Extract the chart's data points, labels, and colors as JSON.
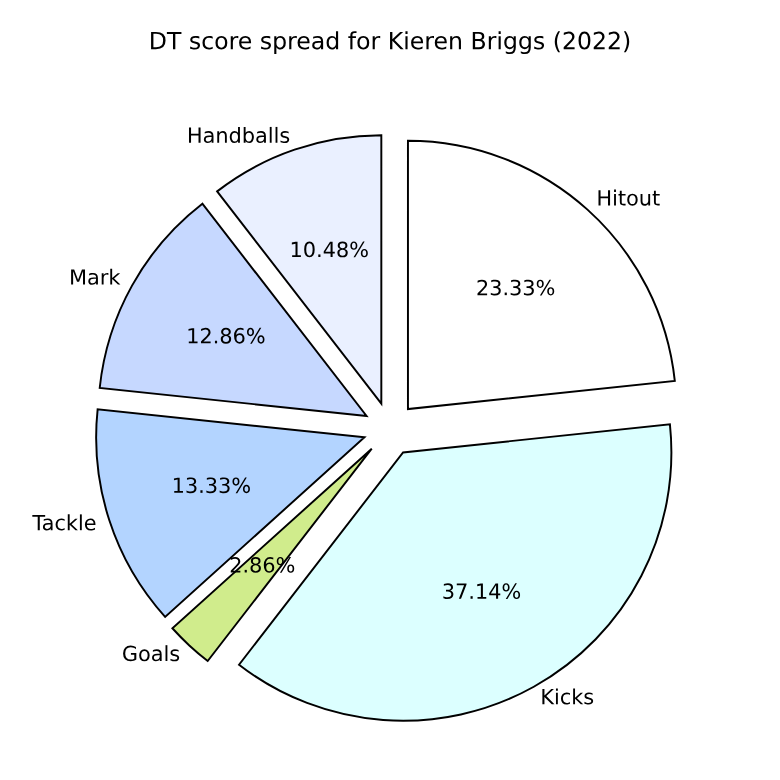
{
  "chart_data": {
    "type": "pie",
    "title": "DT score spread for Kieren Briggs (2022)",
    "categories": [
      "Hitout",
      "Kicks",
      "Goals",
      "Tackle",
      "Mark",
      "Handballs"
    ],
    "values": [
      23.33,
      37.14,
      2.86,
      13.33,
      12.86,
      10.48
    ],
    "value_labels": [
      "23.33%",
      "37.14%",
      "2.86%",
      "13.33%",
      "12.86%",
      "10.48%"
    ],
    "colors": [
      "#ffffff",
      "#dcffff",
      "#d0ec8c",
      "#b3d4ff",
      "#c6d8ff",
      "#eaf0ff"
    ]
  }
}
